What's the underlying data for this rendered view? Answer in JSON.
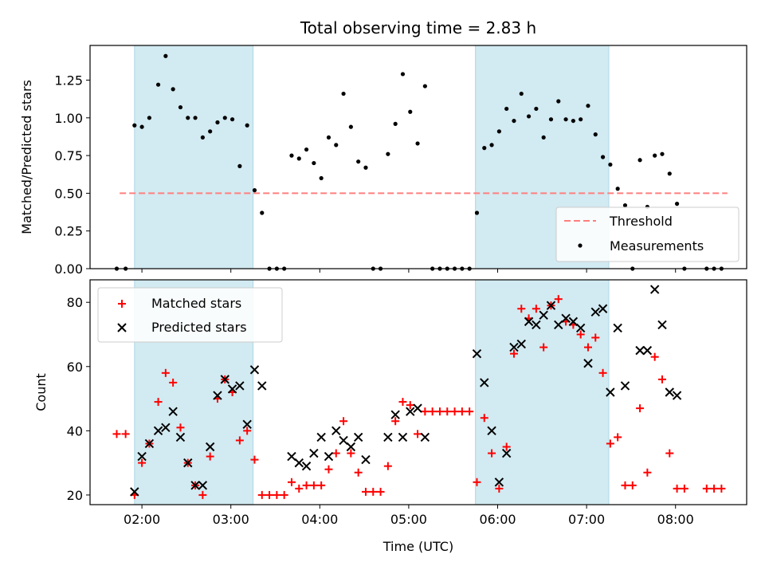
{
  "figure": {
    "title": "Total observing time = 2.83 h",
    "xlabel": "Time (UTC)"
  },
  "colors": {
    "span": "#add8e6",
    "threshold": "#ff7f7f",
    "matched": "#ff0000",
    "predicted": "#000000",
    "measurement": "#000000"
  },
  "chart_data": [
    {
      "type": "scatter",
      "panel": "top",
      "ylabel": "Matched/Predicted stars",
      "xlim": [
        "01:25",
        "08:48"
      ],
      "ylim": [
        0,
        1.48
      ],
      "yticks": [
        0.0,
        0.25,
        0.5,
        0.75,
        1.0,
        1.25
      ],
      "ytick_labels": [
        "0.00",
        "0.25",
        "0.50",
        "0.75",
        "1.00",
        "1.25"
      ],
      "shaded_intervals": [
        [
          "01:55",
          "03:15"
        ],
        [
          "05:45",
          "07:15"
        ]
      ],
      "threshold": {
        "name": "Threshold",
        "y": 0.5,
        "x_range": [
          "01:45",
          "08:35"
        ],
        "style": "dashed"
      },
      "legend": {
        "placement": "lower right",
        "entries": [
          "Threshold",
          "Measurements"
        ]
      },
      "series": [
        {
          "name": "Measurements",
          "marker": "dot",
          "points": [
            [
              "01:43",
              0.0
            ],
            [
              "01:49",
              0.0
            ],
            [
              "01:55",
              0.95
            ],
            [
              "02:00",
              0.94
            ],
            [
              "02:05",
              1.0
            ],
            [
              "02:11",
              1.22
            ],
            [
              "02:16",
              1.41
            ],
            [
              "02:21",
              1.19
            ],
            [
              "02:26",
              1.07
            ],
            [
              "02:31",
              1.0
            ],
            [
              "02:36",
              1.0
            ],
            [
              "02:41",
              0.87
            ],
            [
              "02:46",
              0.91
            ],
            [
              "02:51",
              0.97
            ],
            [
              "02:56",
              1.0
            ],
            [
              "03:01",
              0.99
            ],
            [
              "03:06",
              0.68
            ],
            [
              "03:11",
              0.95
            ],
            [
              "03:16",
              0.52
            ],
            [
              "03:21",
              0.37
            ],
            [
              "03:26",
              0.0
            ],
            [
              "03:31",
              0.0
            ],
            [
              "03:36",
              0.0
            ],
            [
              "03:41",
              0.75
            ],
            [
              "03:46",
              0.73
            ],
            [
              "03:51",
              0.79
            ],
            [
              "03:56",
              0.7
            ],
            [
              "04:01",
              0.6
            ],
            [
              "04:06",
              0.87
            ],
            [
              "04:11",
              0.82
            ],
            [
              "04:16",
              1.16
            ],
            [
              "04:21",
              0.94
            ],
            [
              "04:26",
              0.71
            ],
            [
              "04:31",
              0.67
            ],
            [
              "04:36",
              0.0
            ],
            [
              "04:41",
              0.0
            ],
            [
              "04:46",
              0.76
            ],
            [
              "04:51",
              0.96
            ],
            [
              "04:56",
              1.29
            ],
            [
              "05:01",
              1.04
            ],
            [
              "05:06",
              0.83
            ],
            [
              "05:11",
              1.21
            ],
            [
              "05:16",
              0.0
            ],
            [
              "05:21",
              0.0
            ],
            [
              "05:26",
              0.0
            ],
            [
              "05:31",
              0.0
            ],
            [
              "05:36",
              0.0
            ],
            [
              "05:41",
              0.0
            ],
            [
              "05:46",
              0.37
            ],
            [
              "05:51",
              0.8
            ],
            [
              "05:56",
              0.82
            ],
            [
              "06:01",
              0.91
            ],
            [
              "06:06",
              1.06
            ],
            [
              "06:11",
              0.98
            ],
            [
              "06:16",
              1.16
            ],
            [
              "06:21",
              1.01
            ],
            [
              "06:26",
              1.06
            ],
            [
              "06:31",
              0.87
            ],
            [
              "06:36",
              0.99
            ],
            [
              "06:41",
              1.11
            ],
            [
              "06:46",
              0.99
            ],
            [
              "06:51",
              0.98
            ],
            [
              "06:56",
              0.99
            ],
            [
              "07:01",
              1.08
            ],
            [
              "07:06",
              0.89
            ],
            [
              "07:11",
              0.74
            ],
            [
              "07:16",
              0.69
            ],
            [
              "07:21",
              0.53
            ],
            [
              "07:26",
              0.42
            ],
            [
              "07:31",
              0.0
            ],
            [
              "07:36",
              0.72
            ],
            [
              "07:41",
              0.41
            ],
            [
              "07:46",
              0.75
            ],
            [
              "07:51",
              0.76
            ],
            [
              "07:56",
              0.63
            ],
            [
              "08:01",
              0.43
            ],
            [
              "08:06",
              0.0
            ],
            [
              "08:21",
              0.0
            ],
            [
              "08:26",
              0.0
            ],
            [
              "08:31",
              0.0
            ]
          ]
        }
      ]
    },
    {
      "type": "scatter",
      "panel": "bottom",
      "ylabel": "Count",
      "xlim": [
        "01:25",
        "08:48"
      ],
      "ylim": [
        17,
        87
      ],
      "yticks": [
        20,
        40,
        60,
        80
      ],
      "ytick_labels": [
        "20",
        "40",
        "60",
        "80"
      ],
      "xticks": [
        "02:00",
        "03:00",
        "04:00",
        "05:00",
        "06:00",
        "07:00",
        "08:00"
      ],
      "shaded_intervals": [
        [
          "01:55",
          "03:15"
        ],
        [
          "05:45",
          "07:15"
        ]
      ],
      "legend": {
        "placement": "upper left",
        "entries": [
          "Matched stars",
          "Predicted stars"
        ]
      },
      "series": [
        {
          "name": "Matched stars",
          "marker": "plus",
          "points": [
            [
              "01:43",
              39
            ],
            [
              "01:49",
              39
            ],
            [
              "01:55",
              20
            ],
            [
              "02:00",
              30
            ],
            [
              "02:05",
              36
            ],
            [
              "02:11",
              49
            ],
            [
              "02:16",
              58
            ],
            [
              "02:21",
              55
            ],
            [
              "02:26",
              41
            ],
            [
              "02:31",
              30
            ],
            [
              "02:36",
              23
            ],
            [
              "02:41",
              20
            ],
            [
              "02:46",
              32
            ],
            [
              "02:51",
              50
            ],
            [
              "02:56",
              56
            ],
            [
              "03:01",
              52
            ],
            [
              "03:06",
              37
            ],
            [
              "03:11",
              40
            ],
            [
              "03:16",
              31
            ],
            [
              "03:21",
              20
            ],
            [
              "03:26",
              20
            ],
            [
              "03:31",
              20
            ],
            [
              "03:36",
              20
            ],
            [
              "03:41",
              24
            ],
            [
              "03:46",
              22
            ],
            [
              "03:51",
              23
            ],
            [
              "03:56",
              23
            ],
            [
              "04:01",
              23
            ],
            [
              "04:06",
              28
            ],
            [
              "04:11",
              33
            ],
            [
              "04:16",
              43
            ],
            [
              "04:21",
              33
            ],
            [
              "04:26",
              27
            ],
            [
              "04:31",
              21
            ],
            [
              "04:36",
              21
            ],
            [
              "04:41",
              21
            ],
            [
              "04:46",
              29
            ],
            [
              "04:51",
              43
            ],
            [
              "04:56",
              49
            ],
            [
              "05:01",
              48
            ],
            [
              "05:06",
              39
            ],
            [
              "05:11",
              46
            ],
            [
              "05:16",
              46
            ],
            [
              "05:21",
              46
            ],
            [
              "05:26",
              46
            ],
            [
              "05:31",
              46
            ],
            [
              "05:36",
              46
            ],
            [
              "05:41",
              46
            ],
            [
              "05:46",
              24
            ],
            [
              "05:51",
              44
            ],
            [
              "05:56",
              33
            ],
            [
              "06:01",
              22
            ],
            [
              "06:06",
              35
            ],
            [
              "06:11",
              64
            ],
            [
              "06:16",
              78
            ],
            [
              "06:21",
              75
            ],
            [
              "06:26",
              78
            ],
            [
              "06:31",
              66
            ],
            [
              "06:36",
              79
            ],
            [
              "06:41",
              81
            ],
            [
              "06:46",
              74
            ],
            [
              "06:51",
              73
            ],
            [
              "06:56",
              70
            ],
            [
              "07:01",
              66
            ],
            [
              "07:06",
              69
            ],
            [
              "07:11",
              58
            ],
            [
              "07:16",
              36
            ],
            [
              "07:21",
              38
            ],
            [
              "07:26",
              23
            ],
            [
              "07:31",
              23
            ],
            [
              "07:36",
              47
            ],
            [
              "07:41",
              27
            ],
            [
              "07:46",
              63
            ],
            [
              "07:51",
              56
            ],
            [
              "07:56",
              33
            ],
            [
              "08:01",
              22
            ],
            [
              "08:06",
              22
            ],
            [
              "08:21",
              22
            ],
            [
              "08:26",
              22
            ],
            [
              "08:31",
              22
            ]
          ]
        },
        {
          "name": "Predicted stars",
          "marker": "x",
          "points": [
            [
              "01:55",
              21
            ],
            [
              "02:00",
              32
            ],
            [
              "02:05",
              36
            ],
            [
              "02:11",
              40
            ],
            [
              "02:16",
              41
            ],
            [
              "02:21",
              46
            ],
            [
              "02:26",
              38
            ],
            [
              "02:31",
              30
            ],
            [
              "02:36",
              23
            ],
            [
              "02:41",
              23
            ],
            [
              "02:46",
              35
            ],
            [
              "02:51",
              51
            ],
            [
              "02:56",
              56
            ],
            [
              "03:01",
              53
            ],
            [
              "03:06",
              54
            ],
            [
              "03:11",
              42
            ],
            [
              "03:16",
              59
            ],
            [
              "03:21",
              54
            ],
            [
              "03:41",
              32
            ],
            [
              "03:46",
              30
            ],
            [
              "03:51",
              29
            ],
            [
              "03:56",
              33
            ],
            [
              "04:01",
              38
            ],
            [
              "04:06",
              32
            ],
            [
              "04:11",
              40
            ],
            [
              "04:16",
              37
            ],
            [
              "04:21",
              35
            ],
            [
              "04:26",
              38
            ],
            [
              "04:31",
              31
            ],
            [
              "04:46",
              38
            ],
            [
              "04:51",
              45
            ],
            [
              "04:56",
              38
            ],
            [
              "05:01",
              46
            ],
            [
              "05:06",
              47
            ],
            [
              "05:11",
              38
            ],
            [
              "05:46",
              64
            ],
            [
              "05:51",
              55
            ],
            [
              "05:56",
              40
            ],
            [
              "06:01",
              24
            ],
            [
              "06:06",
              33
            ],
            [
              "06:11",
              66
            ],
            [
              "06:16",
              67
            ],
            [
              "06:21",
              74
            ],
            [
              "06:26",
              73
            ],
            [
              "06:31",
              76
            ],
            [
              "06:36",
              79
            ],
            [
              "06:41",
              73
            ],
            [
              "06:46",
              75
            ],
            [
              "06:51",
              74
            ],
            [
              "06:56",
              72
            ],
            [
              "07:01",
              61
            ],
            [
              "07:06",
              77
            ],
            [
              "07:11",
              78
            ],
            [
              "07:16",
              52
            ],
            [
              "07:21",
              72
            ],
            [
              "07:26",
              54
            ],
            [
              "07:36",
              65
            ],
            [
              "07:41",
              65
            ],
            [
              "07:46",
              84
            ],
            [
              "07:51",
              73
            ],
            [
              "07:56",
              52
            ],
            [
              "08:01",
              51
            ]
          ]
        }
      ]
    }
  ]
}
